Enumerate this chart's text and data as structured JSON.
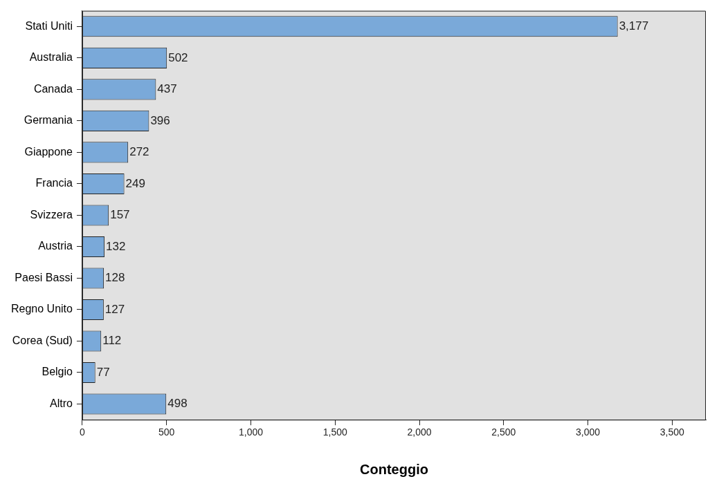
{
  "chart_data": {
    "type": "bar",
    "orientation": "horizontal",
    "xlabel": "Conteggio",
    "categories": [
      "Stati Uniti",
      "Australia",
      "Canada",
      "Germania",
      "Giappone",
      "Francia",
      "Svizzera",
      "Austria",
      "Paesi Bassi",
      "Regno Unito",
      "Corea (Sud)",
      "Belgio",
      "Altro"
    ],
    "values": [
      3177,
      502,
      437,
      396,
      272,
      249,
      157,
      132,
      128,
      127,
      112,
      77,
      498
    ],
    "value_labels": [
      "3,177",
      "502",
      "437",
      "396",
      "272",
      "249",
      "157",
      "132",
      "128",
      "127",
      "112",
      "77",
      "498"
    ],
    "color": "#7aa9d9",
    "xlim": [
      0,
      3700
    ],
    "xticks": [
      0,
      500,
      {
        "value": 1000,
        "label": "1,000"
      },
      {
        "value": 1500,
        "label": "1,500"
      },
      {
        "value": 2000,
        "label": "2,000"
      },
      {
        "value": 2500,
        "label": "2,500"
      },
      {
        "value": 3000,
        "label": "3,000"
      },
      {
        "value": 3500,
        "label": "3,500"
      }
    ],
    "grid": false,
    "legend": false
  }
}
